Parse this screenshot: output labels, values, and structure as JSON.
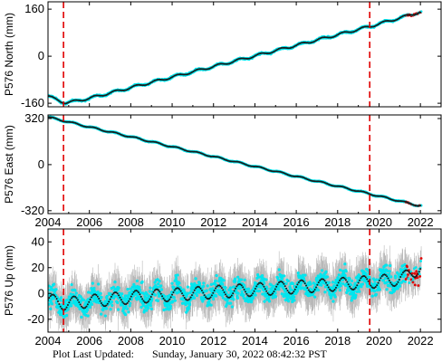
{
  "chart_data": [
    {
      "type": "scatter",
      "panel": "north",
      "ylabel": "P576 North (mm)",
      "xlim": [
        2004.0,
        2023.0
      ],
      "ylim": [
        -172,
        185
      ],
      "yticks": [
        -160,
        0,
        160
      ],
      "xticks": [
        2004,
        2006,
        2008,
        2010,
        2012,
        2014,
        2016,
        2018,
        2020,
        2022
      ],
      "show_xtick_labels": false,
      "grid": false,
      "series": [
        {
          "style": "model",
          "color": "#1a1a1a",
          "x": [
            2004.0,
            2004.3,
            2004.6,
            2004.85,
            2005.1,
            2006.0,
            2007.0,
            2008.0,
            2009.0,
            2010.0,
            2011.0,
            2012.0,
            2013.0,
            2014.0,
            2015.0,
            2016.0,
            2017.0,
            2018.0,
            2019.0,
            2019.6,
            2020.0,
            2021.0,
            2021.5,
            2021.9
          ],
          "values": [
            -135,
            -145,
            -153,
            -158,
            -156,
            -143,
            -125,
            -107,
            -89,
            -71,
            -53,
            -35,
            -17,
            1,
            19,
            37,
            55,
            73,
            91,
            102,
            110,
            130,
            140,
            149
          ],
          "seasonal_amplitude": 4
        }
      ],
      "data_color": "#00e5ee",
      "error_color": "#b8b8b8",
      "final_solution_color": "#e00000"
    },
    {
      "type": "scatter",
      "panel": "east",
      "ylabel": "P576 East (mm)",
      "xlim": [
        2004.0,
        2023.0
      ],
      "ylim": [
        -340,
        345
      ],
      "yticks": [
        -320,
        0,
        320
      ],
      "xticks": [
        2004,
        2006,
        2008,
        2010,
        2012,
        2014,
        2016,
        2018,
        2020,
        2022
      ],
      "show_xtick_labels": true,
      "grid": false,
      "series": [
        {
          "style": "model",
          "color": "#1a1a1a",
          "x": [
            2004.0,
            2005.0,
            2006.0,
            2007.0,
            2008.0,
            2009.0,
            2010.0,
            2011.0,
            2012.0,
            2013.0,
            2014.0,
            2015.0,
            2016.0,
            2017.0,
            2018.0,
            2019.0,
            2019.6,
            2020.0,
            2021.0,
            2021.9
          ],
          "values": [
            330,
            296,
            261,
            227,
            193,
            159,
            124,
            90,
            56,
            21,
            -13,
            -47,
            -82,
            -116,
            -150,
            -184,
            -205,
            -219,
            -253,
            -284
          ],
          "seasonal_amplitude": 5
        }
      ],
      "data_color": "#00e5ee",
      "error_color": "#b8b8b8",
      "final_solution_color": "#e00000"
    },
    {
      "type": "scatter",
      "panel": "up",
      "ylabel": "P576 Up (mm)",
      "xlim": [
        2004.0,
        2023.0
      ],
      "ylim": [
        -30,
        50
      ],
      "yticks": [
        -20,
        0,
        20,
        40
      ],
      "xticks": [
        2004,
        2006,
        2008,
        2010,
        2012,
        2014,
        2016,
        2018,
        2020,
        2022
      ],
      "show_xtick_labels": true,
      "grid": false,
      "series": [
        {
          "style": "model",
          "color": "#1a1a1a",
          "x": [
            2004.0,
            2004.8,
            2006.0,
            2008.0,
            2010.0,
            2012.0,
            2014.0,
            2016.0,
            2018.0,
            2019.6,
            2020.5,
            2021.2,
            2021.6,
            2022.0
          ],
          "values": [
            -5,
            -8,
            -6,
            -3,
            -1,
            1,
            3,
            5,
            7,
            9,
            10,
            12,
            17,
            19
          ],
          "seasonal_amplitude": 5
        }
      ],
      "data_color": "#00e5ee",
      "error_color": "#b8b8b8",
      "final_solution_color": "#e00000"
    }
  ],
  "events": {
    "dates": [
      2004.75,
      2019.55
    ],
    "color": "#e00000",
    "style": "dashed"
  },
  "footer": {
    "label": "Plot Last Updated:",
    "timestamp": "Sunday, January 30, 2022 08:42:32 PST"
  }
}
